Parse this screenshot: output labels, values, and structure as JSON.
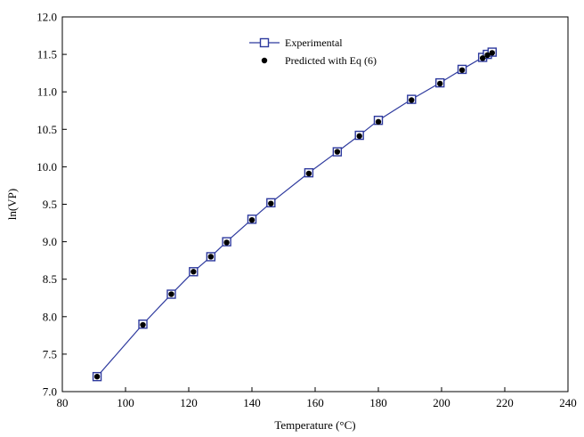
{
  "chart_data": {
    "type": "scatter",
    "xlabel": "Temperature (°C)",
    "ylabel": "ln(VP)",
    "xlim": [
      80,
      240
    ],
    "ylim": [
      7.0,
      12.0
    ],
    "xticks": [
      "80",
      "100",
      "120",
      "140",
      "160",
      "180",
      "200",
      "220",
      "240"
    ],
    "yticks": [
      "7.0",
      "7.5",
      "8.0",
      "8.5",
      "9.0",
      "9.5",
      "10.0",
      "10.5",
      "11.0",
      "11.5",
      "12.0"
    ],
    "grid": false,
    "legend_position": "top-center",
    "series": [
      {
        "name": "Experimental",
        "marker": "open-square",
        "line": true,
        "color": "#2e3a9e",
        "x": [
          91,
          105.5,
          114.5,
          121.5,
          127,
          132,
          140,
          146,
          158,
          167,
          174,
          180,
          190.5,
          199.5,
          206.5,
          213,
          214.5,
          216
        ],
        "y": [
          7.2,
          7.9,
          8.3,
          8.6,
          8.8,
          9.0,
          9.3,
          9.52,
          9.92,
          10.2,
          10.42,
          10.62,
          10.9,
          11.12,
          11.3,
          11.46,
          11.5,
          11.53
        ]
      },
      {
        "name": "Predicted with Eq (6)",
        "marker": "filled-circle",
        "line": false,
        "color": "#000000",
        "x": [
          91,
          105.5,
          114.5,
          121.5,
          127,
          132,
          140,
          146,
          158,
          167,
          174,
          180,
          190.5,
          199.5,
          206.5,
          213,
          214.5,
          216
        ],
        "y": [
          7.2,
          7.89,
          8.3,
          8.6,
          8.8,
          8.99,
          9.29,
          9.51,
          9.91,
          10.2,
          10.41,
          10.6,
          10.89,
          11.11,
          11.29,
          11.45,
          11.49,
          11.52
        ]
      }
    ]
  }
}
